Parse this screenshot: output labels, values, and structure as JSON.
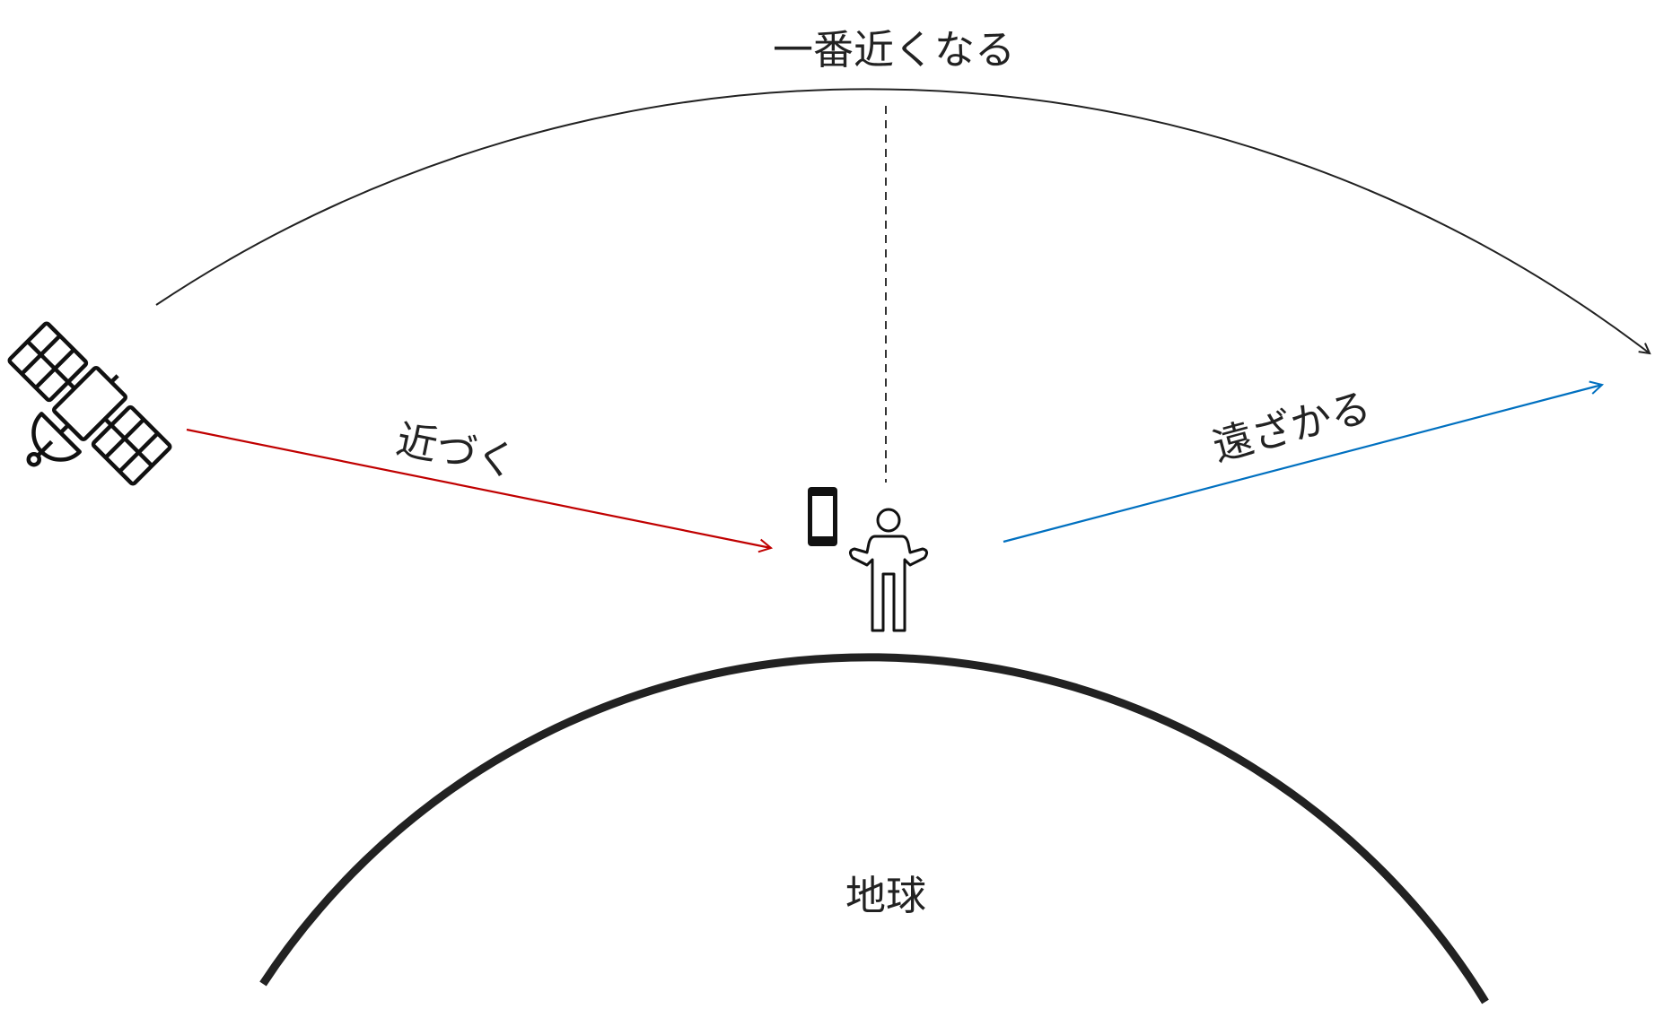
{
  "labels": {
    "closest": "一番近くなる",
    "approach": "近づく",
    "recede": "遠ざかる",
    "earth": "地球"
  }
}
